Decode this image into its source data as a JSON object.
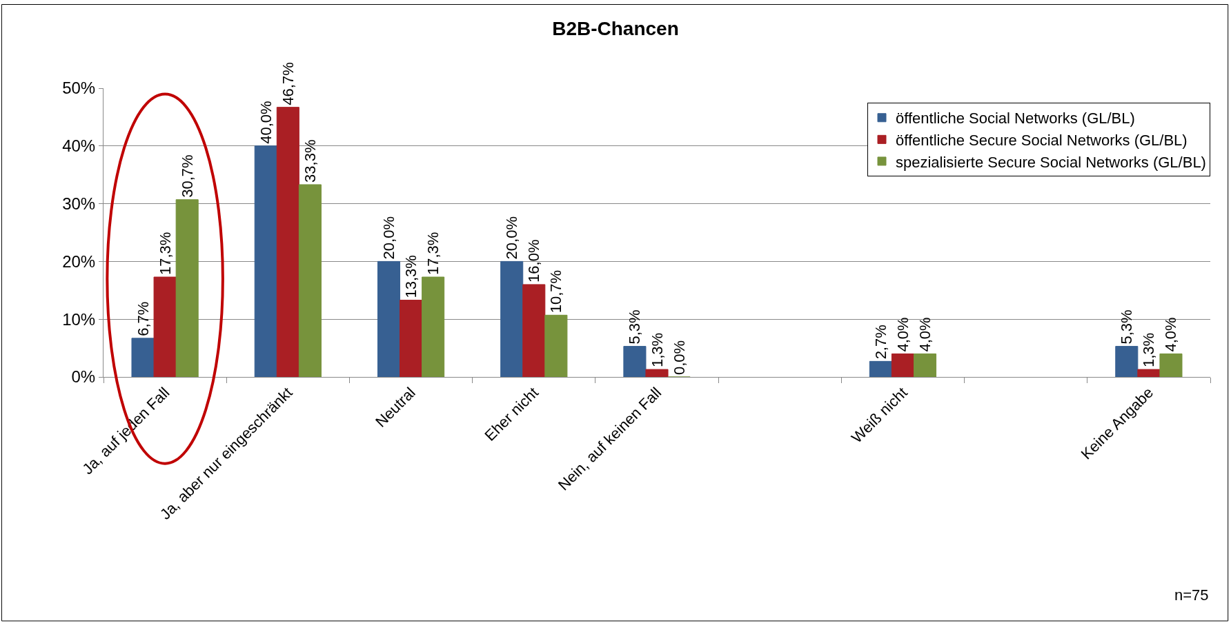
{
  "chart_data": {
    "type": "bar",
    "title": "B2B-Chancen",
    "categories": [
      "Ja, auf jeden Fall",
      "Ja, aber nur eingeschränkt",
      "Neutral",
      "Eher nicht",
      "Nein, auf keinen Fall",
      null,
      "Weiß nicht",
      null,
      "Keine Angabe"
    ],
    "series": [
      {
        "name": "öffentliche Social Networks (GL/BL)",
        "color": "#376092",
        "values": [
          6.7,
          40.0,
          20.0,
          20.0,
          5.3,
          null,
          2.7,
          null,
          5.3
        ],
        "value_labels": [
          "6,7%",
          "40,0%",
          "20,0%",
          "20,0%",
          "5,3%",
          null,
          "2,7%",
          null,
          "5,3%"
        ]
      },
      {
        "name": "öffentliche Secure Social Networks (GL/BL)",
        "color": "#aa1f24",
        "values": [
          17.3,
          46.7,
          13.3,
          16.0,
          1.3,
          null,
          4.0,
          null,
          1.3
        ],
        "value_labels": [
          "17,3%",
          "46,7%",
          "13,3%",
          "16,0%",
          "1,3%",
          null,
          "4,0%",
          null,
          "1,3%"
        ]
      },
      {
        "name": "spezialisierte Secure Social Networks (GL/BL)",
        "color": "#77933c",
        "values": [
          30.7,
          33.3,
          17.3,
          10.7,
          0.0,
          null,
          4.0,
          null,
          4.0
        ],
        "value_labels": [
          "30,7%",
          "33,3%",
          "17,3%",
          "10,7%",
          "0,0%",
          null,
          "4,0%",
          null,
          "4,0%"
        ]
      }
    ],
    "ylim": [
      0,
      50
    ],
    "yticks": [
      {
        "value": 0,
        "label": "0%"
      },
      {
        "value": 10,
        "label": "10%"
      },
      {
        "value": 20,
        "label": "20%"
      },
      {
        "value": 30,
        "label": "30%"
      },
      {
        "value": 40,
        "label": "40%"
      },
      {
        "value": 50,
        "label": "50%"
      }
    ],
    "grid": "y",
    "legend": "top right",
    "annotations": [
      "n=75"
    ]
  }
}
